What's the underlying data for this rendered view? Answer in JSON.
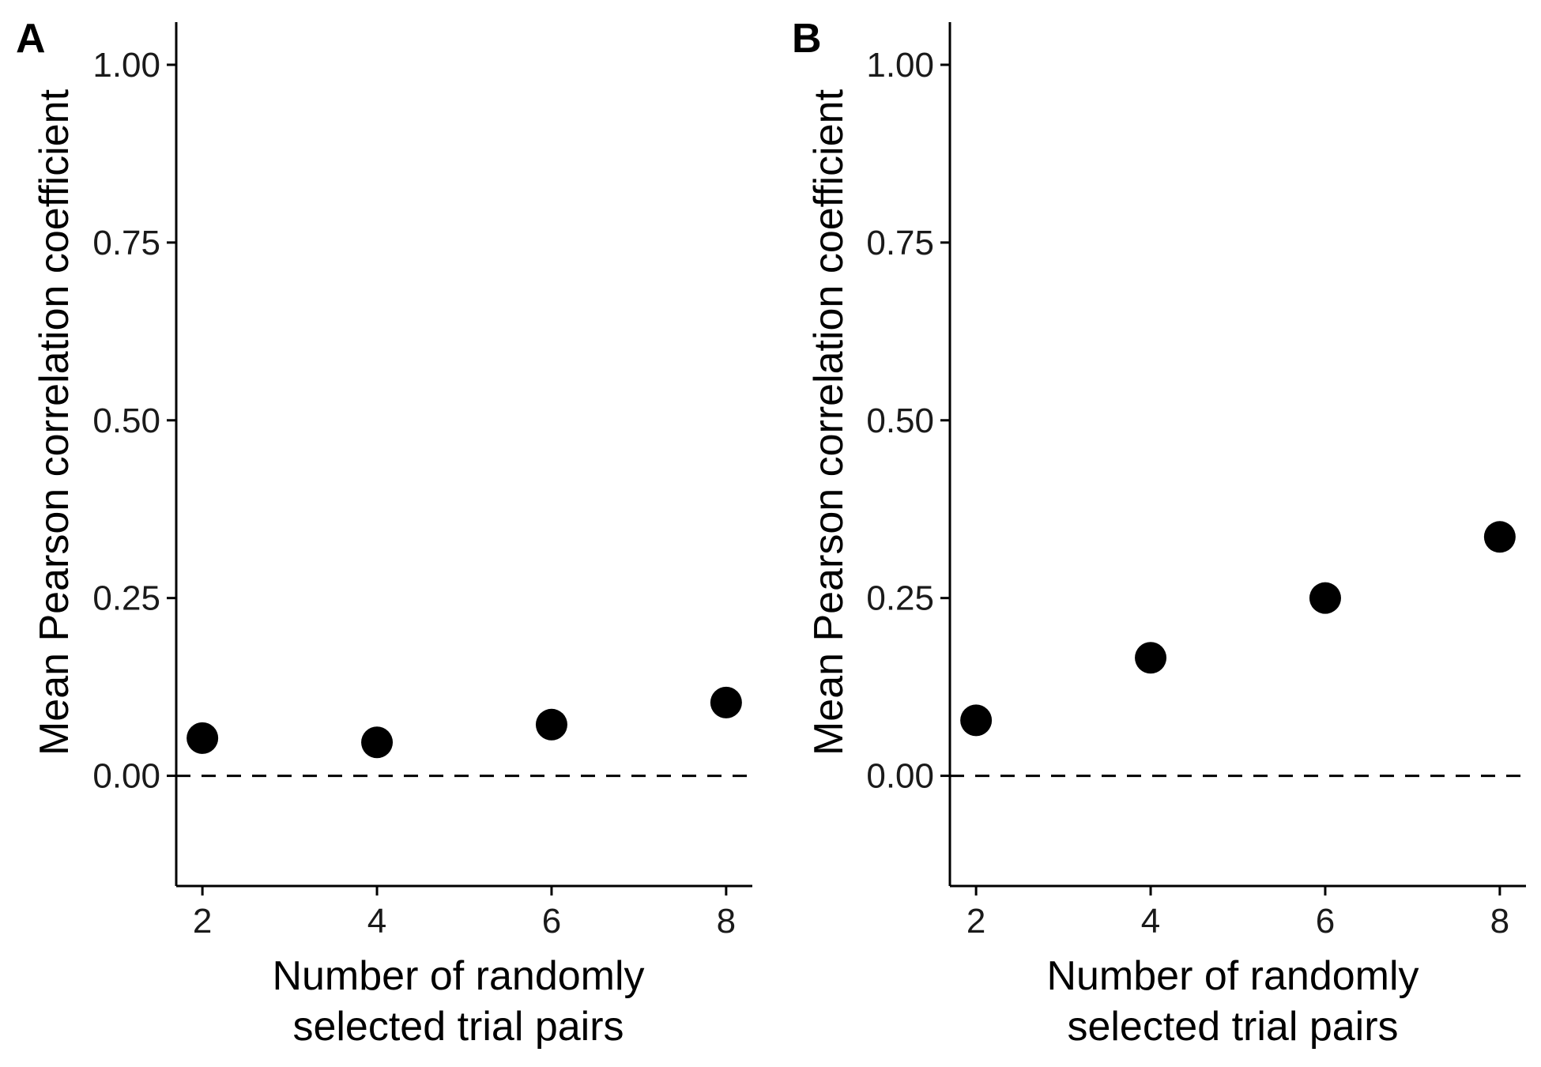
{
  "chart_data": [
    {
      "type": "scatter",
      "panel_label": "A",
      "title": "",
      "xlabel": [
        "Number of randomly",
        "selected trial pairs"
      ],
      "ylabel": "Mean Pearson correlation coefficient",
      "x_ticks": [
        2,
        4,
        6,
        8
      ],
      "x_tick_labels": [
        "2",
        "4",
        "6",
        "8"
      ],
      "y_ticks": [
        0,
        0.25,
        0.5,
        0.75,
        1
      ],
      "y_tick_labels": [
        "0.00",
        "0.25",
        "0.50",
        "0.75",
        "1.00"
      ],
      "xlim": [
        1.7,
        8.3
      ],
      "ylim": [
        -0.155,
        1.06
      ],
      "reference_line": {
        "y": 0,
        "style": "dashed"
      },
      "grid": false,
      "legend": "none",
      "point_color": "#000000",
      "series": [
        {
          "x": [
            2,
            4,
            6,
            8
          ],
          "y": [
            0.053,
            0.047,
            0.072,
            0.103
          ]
        }
      ]
    },
    {
      "type": "scatter",
      "panel_label": "B",
      "title": "",
      "xlabel": [
        "Number of randomly",
        "selected trial pairs"
      ],
      "ylabel": "Mean Pearson correlation coefficient",
      "x_ticks": [
        2,
        4,
        6,
        8
      ],
      "x_tick_labels": [
        "2",
        "4",
        "6",
        "8"
      ],
      "y_ticks": [
        0,
        0.25,
        0.5,
        0.75,
        1
      ],
      "y_tick_labels": [
        "0.00",
        "0.25",
        "0.50",
        "0.75",
        "1.00"
      ],
      "xlim": [
        1.7,
        8.3
      ],
      "ylim": [
        -0.155,
        1.06
      ],
      "reference_line": {
        "y": 0,
        "style": "dashed"
      },
      "grid": false,
      "legend": "none",
      "point_color": "#000000",
      "series": [
        {
          "x": [
            2,
            4,
            6,
            8
          ],
          "y": [
            0.078,
            0.166,
            0.25,
            0.336
          ]
        }
      ]
    }
  ]
}
